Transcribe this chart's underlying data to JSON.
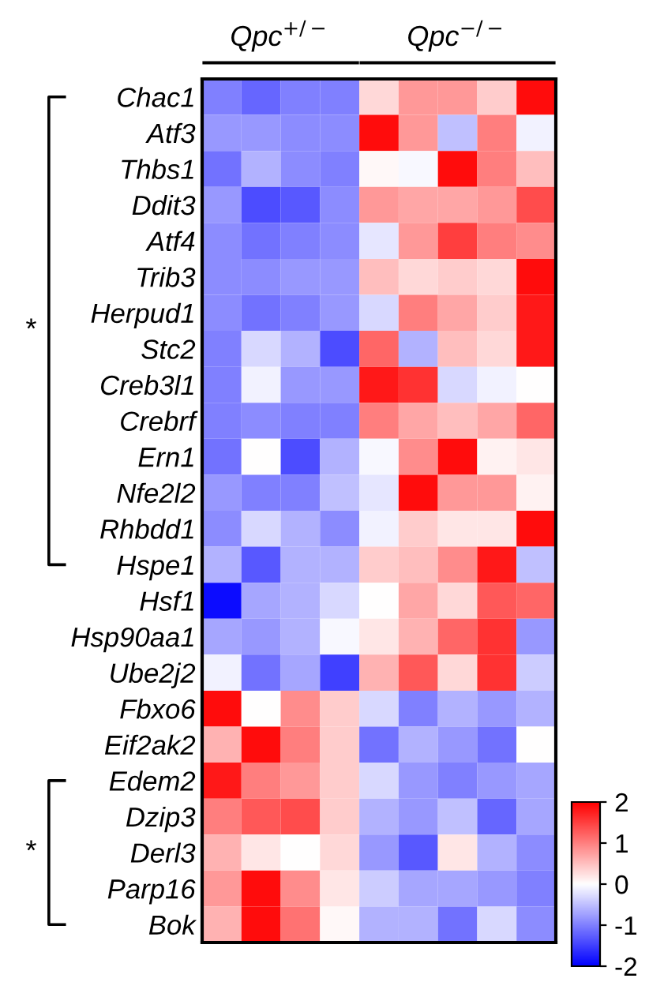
{
  "chart_data": {
    "type": "heatmap",
    "categories": [
      null,
      null,
      null,
      null,
      null,
      null,
      null,
      null,
      null
    ],
    "y_categories": [
      "Chac1",
      "Atf3",
      "Thbs1",
      "Ddit3",
      "Atf4",
      "Trib3",
      "Herpud1",
      "Stc2",
      "Creb3l1",
      "Crebrf",
      "Ern1",
      "Nfe2l2",
      "Rhbdd1",
      "Hspe1",
      "Hsf1",
      "Hsp90aa1",
      "Ube2j2",
      "Fbxo6",
      "Eif2ak2",
      "Edem2",
      "Dzip3",
      "Derl3",
      "Parp16",
      "Bok"
    ],
    "cells": [
      [
        -1,
        -1.2,
        -1,
        -1,
        0.3,
        0.8,
        0.8,
        0.4,
        1.9
      ],
      [
        -0.8,
        -0.8,
        -0.9,
        -0.9,
        1.9,
        0.8,
        -0.5,
        1.0,
        -0.1
      ],
      [
        -1.1,
        -0.6,
        -0.9,
        -1,
        0.05,
        -0.05,
        1.9,
        1.0,
        0.5
      ],
      [
        -0.8,
        -1.4,
        -1.3,
        -0.9,
        0.8,
        0.7,
        0.7,
        0.8,
        1.4
      ],
      [
        -0.9,
        -1.1,
        -1,
        -0.9,
        -0.2,
        0.8,
        1.5,
        1.0,
        0.9
      ],
      [
        -0.9,
        -0.9,
        -0.8,
        -0.8,
        0.5,
        0.3,
        0.4,
        0.3,
        1.9
      ],
      [
        -0.9,
        -1.1,
        -1,
        -0.8,
        -0.3,
        1.0,
        0.7,
        0.4,
        1.8
      ],
      [
        -1,
        -0.3,
        -0.6,
        -1.4,
        1.2,
        -0.6,
        0.5,
        0.3,
        1.8
      ],
      [
        -1,
        -0.1,
        -0.8,
        -0.8,
        1.8,
        1.6,
        -0.3,
        -0.1,
        0
      ],
      [
        -1,
        -0.9,
        -1,
        -1,
        1.0,
        0.7,
        0.5,
        0.7,
        1.2
      ],
      [
        -1.1,
        0,
        -1.4,
        -0.6,
        -0.05,
        0.9,
        1.9,
        0.1,
        0.2
      ],
      [
        -0.8,
        -1,
        -1,
        -0.5,
        -0.2,
        1.9,
        0.8,
        0.8,
        0.1
      ],
      [
        -0.9,
        -0.3,
        -0.6,
        -0.9,
        -0.1,
        0.4,
        0.2,
        0.2,
        1.9
      ],
      [
        -0.6,
        -1.3,
        -0.6,
        -0.6,
        0.4,
        0.5,
        0.9,
        1.8,
        -0.5
      ],
      [
        -1.9,
        -0.7,
        -0.6,
        -0.3,
        0,
        0.7,
        0.3,
        1.3,
        1.2
      ],
      [
        -0.7,
        -0.8,
        -0.6,
        -0.05,
        0.2,
        0.6,
        1.2,
        1.6,
        -0.8
      ],
      [
        -0.1,
        -1.1,
        -0.7,
        -1.5,
        0.6,
        1.3,
        0.3,
        1.6,
        -0.4
      ],
      [
        1.9,
        0,
        0.9,
        0.4,
        -0.3,
        -1,
        -0.6,
        -0.8,
        -0.6
      ],
      [
        0.6,
        1.9,
        1.0,
        0.4,
        -1.1,
        -0.6,
        -0.8,
        -1.1,
        0
      ],
      [
        1.8,
        1.0,
        0.8,
        0.4,
        -0.3,
        -0.8,
        -1,
        -0.8,
        -0.7
      ],
      [
        1.0,
        1.3,
        1.4,
        0.4,
        -0.6,
        -0.8,
        -0.5,
        -1.2,
        -0.7
      ],
      [
        0.6,
        0.2,
        0,
        0.3,
        -0.8,
        -1.3,
        0.2,
        -0.6,
        -0.9
      ],
      [
        0.8,
        1.9,
        0.9,
        0.2,
        -0.4,
        -0.7,
        -0.7,
        -0.8,
        -1
      ],
      [
        0.6,
        1.9,
        1.1,
        0.05,
        -0.6,
        -0.6,
        -1.1,
        -0.3,
        -0.9
      ]
    ],
    "clim": [
      -2,
      2
    ],
    "cticks": [
      -2,
      -1,
      0,
      1,
      2
    ],
    "annotations": [
      "Qpc$^{+/−}$",
      "Qpc$^{−/−}$",
      "*",
      "*"
    ]
  }
}
